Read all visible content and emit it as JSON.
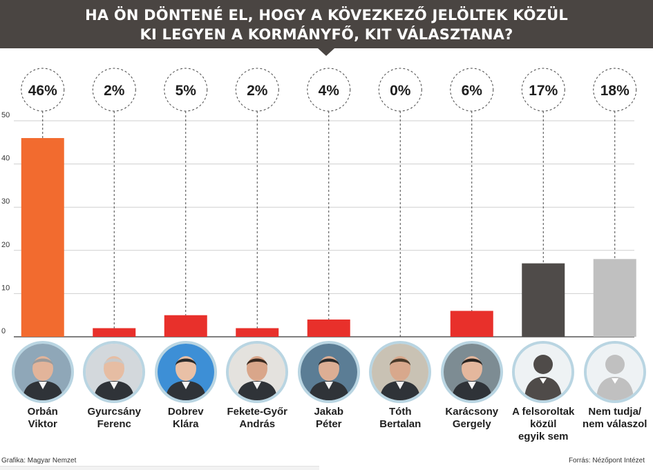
{
  "header": {
    "line1": "HA ÖN DÖNTENÉ EL, HOGY A KÖVEZKEZŐ JELÖLTEK KÖZÜL",
    "line2": "KI LEGYEN A KORMÁNYFŐ, KIT VÁLASZTANA?"
  },
  "colors": {
    "header_bg": "#4a4542",
    "orange": "#f26b2f",
    "red": "#e8302b",
    "dark_gray": "#4f4b49",
    "light_gray": "#c0c0c0",
    "photo_ring": "#b9d5e2"
  },
  "chart_data": {
    "type": "bar",
    "categories": [
      "Orbán Viktor",
      "Gyurcsány Ferenc",
      "Dobrev Klára",
      "Fekete-Győr András",
      "Jakab Péter",
      "Tóth Bertalan",
      "Karácsony Gergely",
      "A felsoroltak közül egyik sem",
      "Nem tudja/ nem válaszol"
    ],
    "values": [
      46,
      2,
      5,
      2,
      4,
      0,
      6,
      17,
      18
    ],
    "value_labels": [
      "46%",
      "2%",
      "5%",
      "2%",
      "4%",
      "0%",
      "6%",
      "17%",
      "18%"
    ],
    "bar_colors": [
      "#f26b2f",
      "#e8302b",
      "#e8302b",
      "#e8302b",
      "#e8302b",
      "#e8302b",
      "#e8302b",
      "#4f4b49",
      "#c0c0c0"
    ],
    "ylim": [
      0,
      50
    ],
    "yticks": [
      "0",
      "10",
      "20",
      "30",
      "40",
      "50"
    ],
    "grid": true,
    "xlabel": "",
    "ylabel": ""
  },
  "candidates": [
    {
      "name_line1": "Orbán",
      "name_line2": "Viktor",
      "name_line3": "",
      "photo": "portrait-photo"
    },
    {
      "name_line1": "Gyurcsány",
      "name_line2": "Ferenc",
      "name_line3": "",
      "photo": "portrait-photo"
    },
    {
      "name_line1": "Dobrev",
      "name_line2": "Klára",
      "name_line3": "",
      "photo": "portrait-photo"
    },
    {
      "name_line1": "Fekete-Győr",
      "name_line2": "András",
      "name_line3": "",
      "photo": "portrait-photo"
    },
    {
      "name_line1": "Jakab",
      "name_line2": "Péter",
      "name_line3": "",
      "photo": "portrait-photo"
    },
    {
      "name_line1": "Tóth",
      "name_line2": "Bertalan",
      "name_line3": "",
      "photo": "portrait-photo"
    },
    {
      "name_line1": "Karácsony",
      "name_line2": "Gergely",
      "name_line3": "",
      "photo": "portrait-photo"
    },
    {
      "name_line1": "A felsoroltak",
      "name_line2": "közül",
      "name_line3": "egyik sem",
      "photo": "person-silhouette-icon"
    },
    {
      "name_line1": "Nem tudja/",
      "name_line2": "nem válaszol",
      "name_line3": "",
      "photo": "person-silhouette-icon"
    }
  ],
  "footer": {
    "credit_left": "Grafika: Magyar Nemzet",
    "credit_right": "Forrás: Nézőpont Intézet"
  }
}
